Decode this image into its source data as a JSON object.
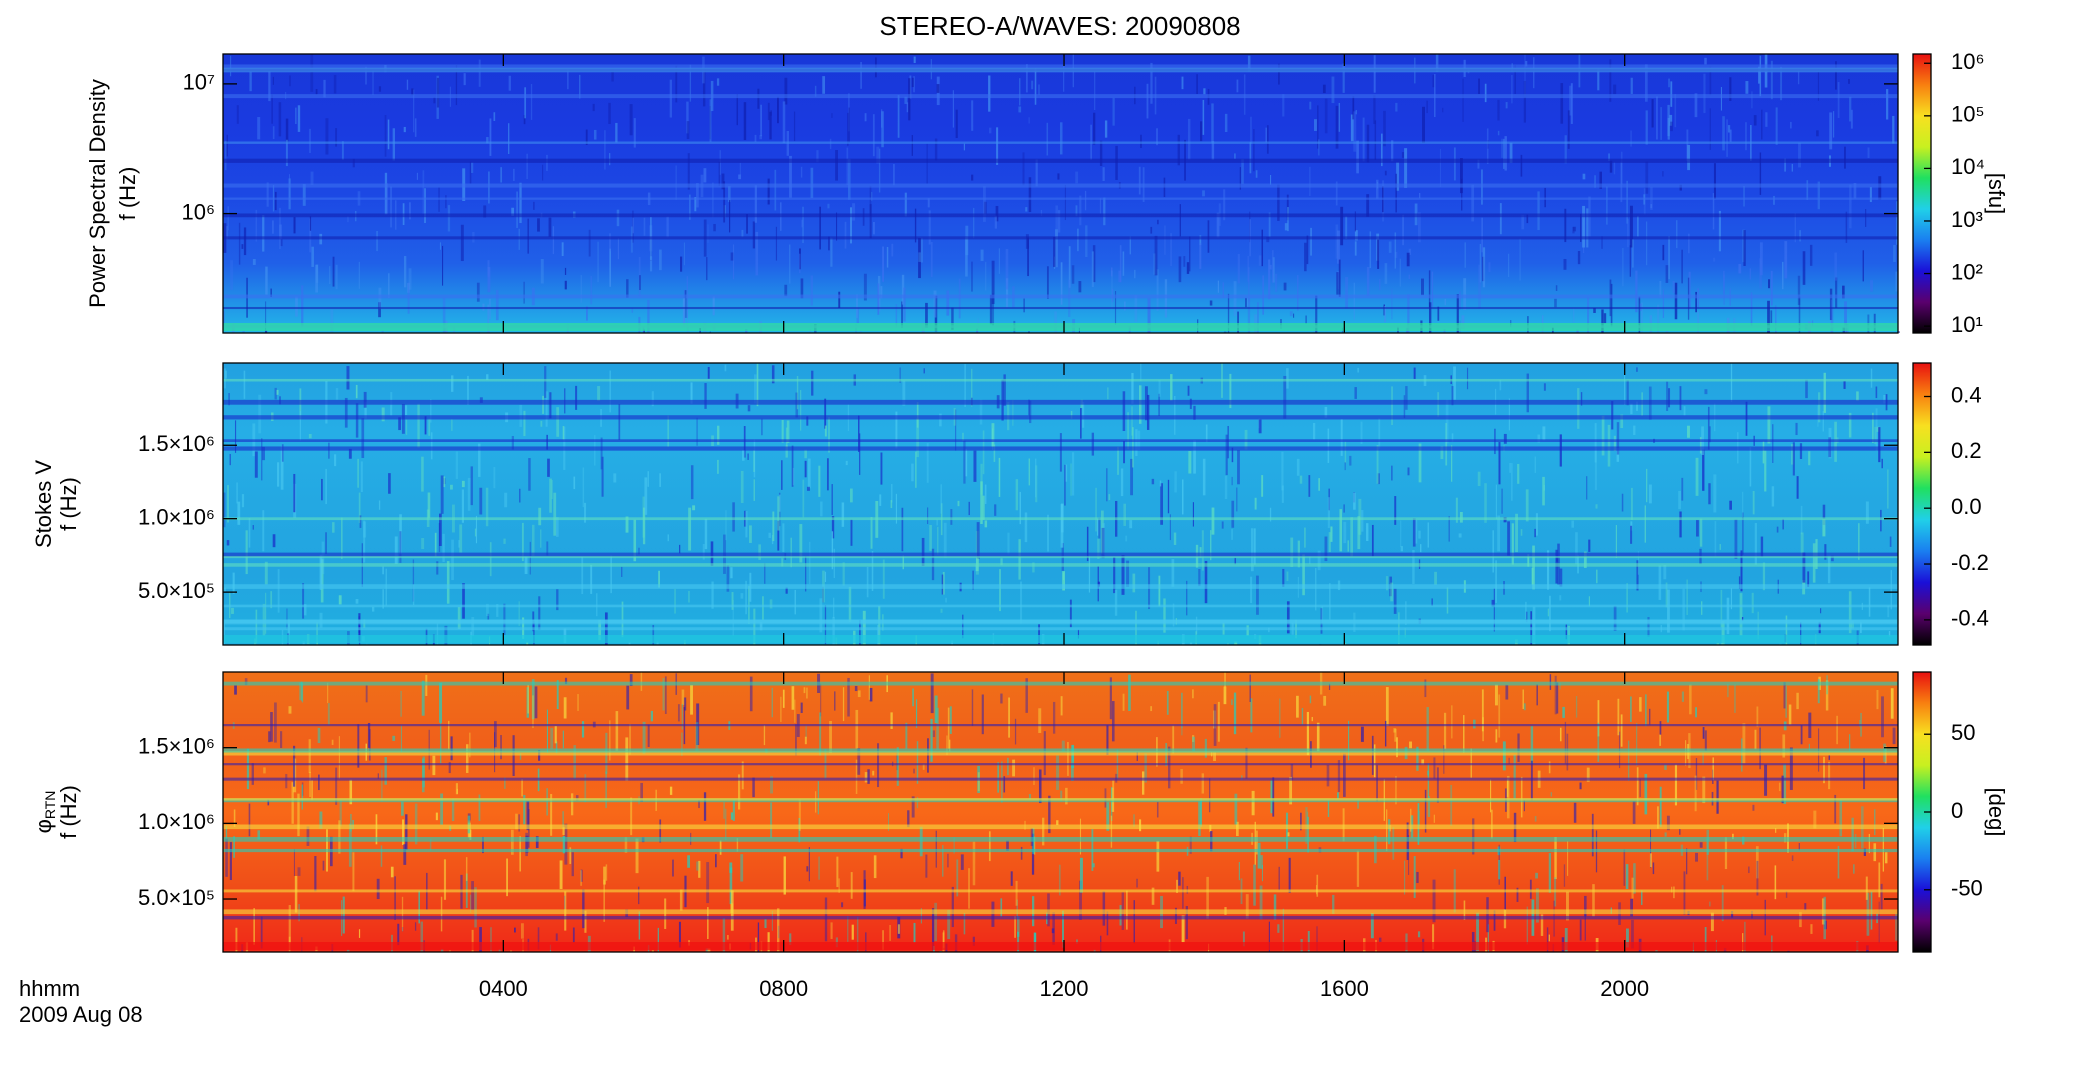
{
  "chart_data": [
    {
      "type": "heatmap",
      "title": "STEREO-A/WAVES: 20090808",
      "quantity": "Power Spectral Density",
      "ylabel": "f (Hz)",
      "yscale": "log",
      "ylim": [
        120000,
        17000000
      ],
      "yticks": [
        {
          "value": 1000000,
          "label": "10⁶"
        },
        {
          "value": 10000000,
          "label": "10⁷"
        }
      ],
      "cscale": "log",
      "clim": [
        7.4,
        1500000
      ],
      "cticks": [
        {
          "value": 10,
          "label": "10¹"
        },
        {
          "value": 100,
          "label": "10²"
        },
        {
          "value": 1000,
          "label": "10³"
        },
        {
          "value": 10000,
          "label": "10⁴"
        },
        {
          "value": 100000,
          "label": "10⁵"
        },
        {
          "value": 1000000,
          "label": "10⁶"
        }
      ],
      "clabel": "[sfu]",
      "colormap": [
        "#000000",
        "#5a006e",
        "#1a10d8",
        "#1a7ff0",
        "#20d0e8",
        "#20e060",
        "#c8f020",
        "#f8e020",
        "#f88010",
        "#e81010"
      ]
    },
    {
      "type": "heatmap",
      "quantity": "Stokes V",
      "ylabel": "f (Hz)",
      "yscale": "linear",
      "ylim": [
        140000,
        2060000
      ],
      "yticks": [
        {
          "value": 500000,
          "label": "5.0×10⁵"
        },
        {
          "value": 1000000,
          "label": "1.0×10⁶"
        },
        {
          "value": 1500000,
          "label": "1.5×10⁶"
        }
      ],
      "cscale": "linear",
      "clim": [
        -0.49,
        0.52
      ],
      "cticks": [
        0.4,
        0.2,
        {
          "value": 0,
          "label": "0.0"
        },
        -0.2,
        -0.4
      ]
    },
    {
      "type": "heatmap",
      "quantity": "φ",
      "quantity_sub": "RTN",
      "ylabel": "f (Hz)",
      "yscale": "linear",
      "ylim": [
        150000,
        2000000
      ],
      "yticks": [
        {
          "value": 500000,
          "label": "5.0×10⁵"
        },
        {
          "value": 1000000,
          "label": "1.0×10⁶"
        },
        {
          "value": 1500000,
          "label": "1.5×10⁶"
        }
      ],
      "cscale": "linear",
      "clim": [
        -90,
        90
      ],
      "cticks": [
        50,
        0,
        -50
      ],
      "clabel": "[deg]",
      "xlim": [
        0,
        23.9
      ],
      "xticks": [
        {
          "value": 4,
          "label": "0400"
        },
        {
          "value": 8,
          "label": "0800"
        },
        {
          "value": 12,
          "label": "1200"
        },
        {
          "value": 16,
          "label": "1600"
        },
        {
          "value": 20,
          "label": "2000"
        }
      ],
      "xlabel": "hhmm",
      "date_label": "2009 Aug 08"
    }
  ]
}
